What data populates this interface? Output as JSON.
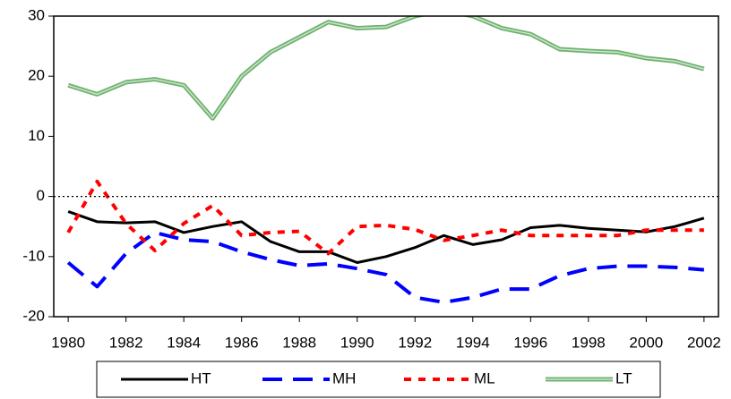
{
  "chart_data": {
    "type": "line",
    "x": [
      1980,
      1981,
      1982,
      1983,
      1984,
      1985,
      1986,
      1987,
      1988,
      1989,
      1990,
      1991,
      1992,
      1993,
      1994,
      1995,
      1996,
      1997,
      1998,
      1999,
      2000,
      2001,
      2002
    ],
    "series": [
      {
        "name": "HT",
        "color": "#000000",
        "dash": "solid",
        "values": [
          -2.5,
          -4.2,
          -4.4,
          -4.2,
          -6,
          -5,
          -4.2,
          -7.5,
          -9.2,
          -9.2,
          -11,
          -10,
          -8.5,
          -6.5,
          -8,
          -7.2,
          -5.2,
          -4.8,
          -5.3,
          -5.6,
          -5.9,
          -5,
          -3.6
        ]
      },
      {
        "name": "MH",
        "color": "#0000ff",
        "dash": "long",
        "values": [
          -11,
          -15,
          -9.5,
          -6,
          -7.2,
          -7.5,
          -9.2,
          -10.5,
          -11.5,
          -11.2,
          -12,
          -13,
          -16.8,
          -17.6,
          -16.8,
          -15.4,
          -15.4,
          -13.2,
          -12,
          -11.6,
          -11.6,
          -11.8,
          -12.2
        ]
      },
      {
        "name": "ML",
        "color": "#ff0000",
        "dash": "short",
        "values": [
          -6,
          2.5,
          -4.5,
          -9,
          -4.5,
          -1.5,
          -6.5,
          -6,
          -5.8,
          -9.5,
          -5,
          -4.8,
          -5.5,
          -7.3,
          -6.5,
          -5.6,
          -6.5,
          -6.5,
          -6.5,
          -6.5,
          -5.6,
          -5.6,
          -5.6
        ]
      },
      {
        "name": "LT",
        "color": "#70b070",
        "dash": "double",
        "values": [
          18.5,
          17,
          19,
          19.5,
          18.5,
          13,
          20,
          24,
          26.5,
          29,
          28,
          28.2,
          30,
          31,
          30,
          28,
          27,
          24.5,
          24.2,
          24,
          23,
          22.5,
          21.2
        ]
      }
    ],
    "xlim": [
      1979.5,
      2002.5
    ],
    "xticks": [
      1980,
      1982,
      1984,
      1986,
      1988,
      1990,
      1992,
      1994,
      1996,
      1998,
      2000,
      2002
    ],
    "ylim": [
      -20,
      30
    ],
    "yticks": [
      -20,
      -10,
      0,
      10,
      20,
      30
    ],
    "reference_line": 0,
    "legend": "bottom"
  }
}
